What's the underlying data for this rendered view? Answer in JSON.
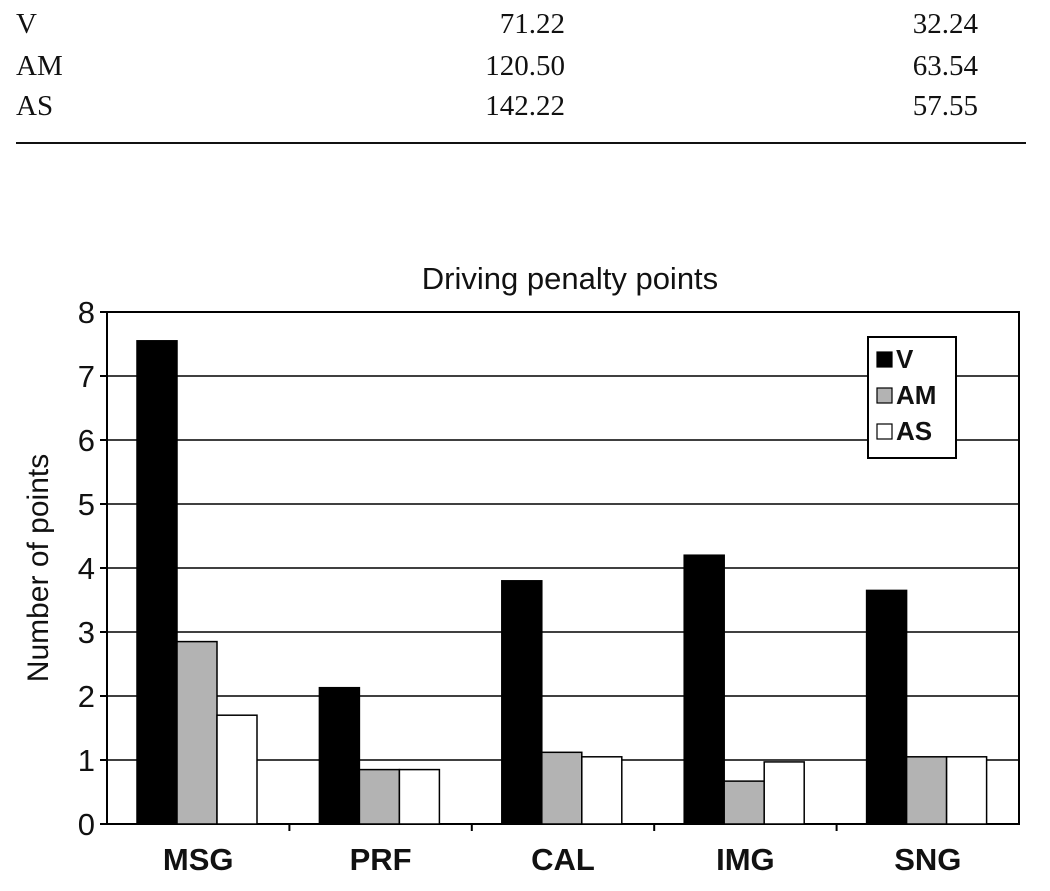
{
  "table": {
    "rows": [
      {
        "label": "V",
        "c1": "71.22",
        "c2": "32.24"
      },
      {
        "label": "AM",
        "c1": "120.50",
        "c2": "63.54"
      },
      {
        "label": "AS",
        "c1": "142.22",
        "c2": "57.55"
      }
    ]
  },
  "chart_data": {
    "type": "bar",
    "title": "Driving penalty points",
    "xlabel": "",
    "ylabel": "Number of points",
    "categories": [
      "MSG",
      "PRF",
      "CAL",
      "IMG",
      "SNG"
    ],
    "ylim": [
      0,
      8
    ],
    "yticks": [
      0,
      1,
      2,
      3,
      4,
      5,
      6,
      7,
      8
    ],
    "grid": true,
    "legend": "top-right",
    "series": [
      {
        "name": "V",
        "color": "#000000",
        "values": [
          7.55,
          2.13,
          3.8,
          4.2,
          3.65
        ]
      },
      {
        "name": "AM",
        "color": "#b3b3b3",
        "values": [
          2.85,
          0.85,
          1.12,
          0.67,
          1.05
        ]
      },
      {
        "name": "AS",
        "color": "#ffffff",
        "values": [
          1.7,
          0.85,
          1.05,
          0.97,
          1.05
        ]
      }
    ]
  }
}
